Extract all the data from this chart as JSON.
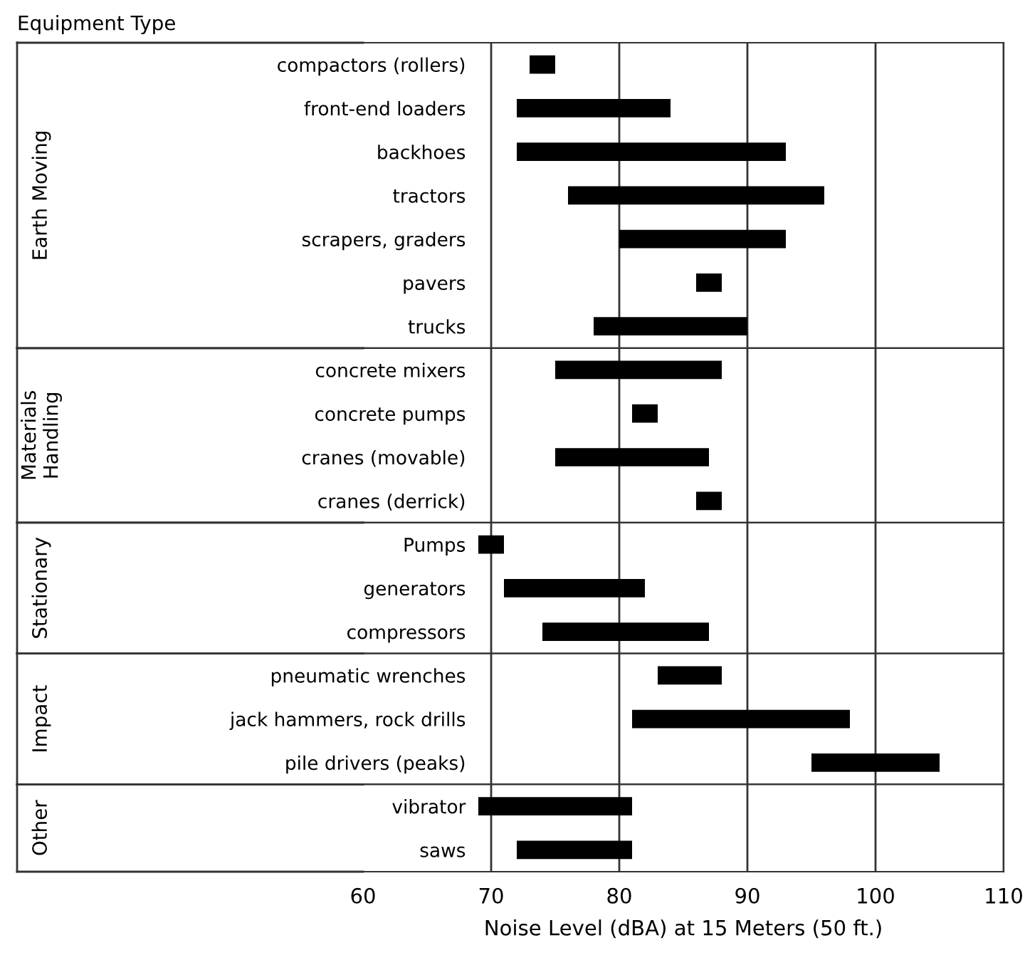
{
  "chart_data": [
    {
      "type": "bar",
      "orientation": "horizontal",
      "title": "Equipment Type",
      "ylabel": "Earth Moving",
      "categories": [
        "compactors (rollers)",
        "front-end loaders",
        "backhoes",
        "tractors",
        "scrapers, graders",
        "pavers",
        "trucks"
      ],
      "base": [
        73,
        72,
        72,
        76,
        80,
        86,
        78
      ],
      "values": [
        2,
        12,
        21,
        20,
        13,
        2,
        12
      ],
      "color": "#000000",
      "xlim": [
        60,
        110
      ],
      "xticks": [
        60,
        70,
        80,
        90,
        100,
        110
      ],
      "grid": "x",
      "tick_labels": "y"
    },
    {
      "type": "bar",
      "orientation": "horizontal",
      "ylabel": "Materials\nHandling",
      "categories": [
        "concrete mixers",
        "concrete pumps",
        "cranes (movable)",
        "cranes (derrick)"
      ],
      "base": [
        75,
        81,
        75,
        86
      ],
      "values": [
        13,
        2,
        12,
        2
      ],
      "color": "#000000",
      "xlim": [
        60,
        110
      ],
      "xticks": [
        60,
        70,
        80,
        90,
        100,
        110
      ],
      "grid": "x",
      "tick_labels": "y"
    },
    {
      "type": "bar",
      "orientation": "horizontal",
      "ylabel": "Stationary",
      "categories": [
        "Pumps",
        "generators",
        "compressors"
      ],
      "base": [
        69,
        71,
        74
      ],
      "values": [
        2,
        11,
        13
      ],
      "color": "#000000",
      "xlim": [
        60,
        110
      ],
      "xticks": [
        60,
        70,
        80,
        90,
        100,
        110
      ],
      "grid": "x",
      "tick_labels": "y"
    },
    {
      "type": "bar",
      "orientation": "horizontal",
      "ylabel": "Impact",
      "categories": [
        "pneumatic wrenches",
        "jack hammers, rock drills",
        "pile drivers (peaks)"
      ],
      "base": [
        83,
        81,
        95
      ],
      "values": [
        5,
        17,
        10
      ],
      "color": "#000000",
      "xlim": [
        60,
        110
      ],
      "xticks": [
        60,
        70,
        80,
        90,
        100,
        110
      ],
      "grid": "x",
      "tick_labels": "y"
    },
    {
      "type": "bar",
      "orientation": "horizontal",
      "ylabel": "Other",
      "xlabel": "Noise Level (dBA) at 15 Meters (50 ft.)",
      "categories": [
        "vibrator",
        "saws"
      ],
      "base": [
        69,
        72
      ],
      "values": [
        12,
        9
      ],
      "color": "#000000",
      "xlim": [
        60,
        110
      ],
      "xticks": [
        60,
        70,
        80,
        90,
        100,
        110
      ],
      "grid": "x"
    }
  ]
}
